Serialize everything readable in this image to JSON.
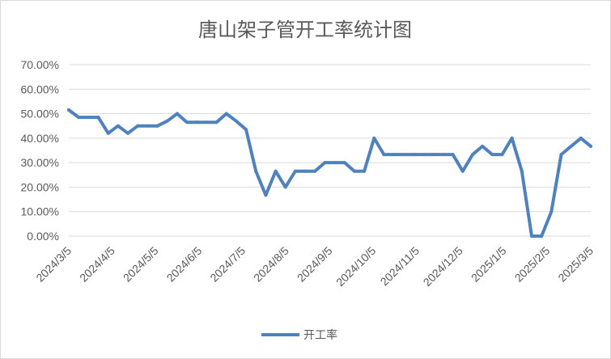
{
  "chart_data": {
    "type": "line",
    "title": "唐山架子管开工率统计图",
    "xlabel": "",
    "ylabel": "",
    "ylim": [
      0,
      70
    ],
    "y_ticks": [
      "0.00%",
      "10.00%",
      "20.00%",
      "30.00%",
      "40.00%",
      "50.00%",
      "60.00%",
      "70.00%"
    ],
    "y_tick_values": [
      0,
      10,
      20,
      30,
      40,
      50,
      60,
      70
    ],
    "x_tick_labels": [
      "2024/3/5",
      "2024/4/5",
      "2024/5/5",
      "2024/6/5",
      "2024/7/5",
      "2024/8/5",
      "2024/9/5",
      "2024/10/5",
      "2024/11/5",
      "2024/12/5",
      "2025/1/5",
      "2025/2/5",
      "2025/3/5"
    ],
    "grid": true,
    "legend_position": "bottom",
    "series": [
      {
        "name": "开工率",
        "color": "#4F81BD",
        "values": [
          51.5,
          48.5,
          48.5,
          48.5,
          42.0,
          45.0,
          42.0,
          45.0,
          45.0,
          45.0,
          47.0,
          50.0,
          46.5,
          46.5,
          46.5,
          46.5,
          50.0,
          47.0,
          43.5,
          26.5,
          16.7,
          26.5,
          20.0,
          26.5,
          26.5,
          26.5,
          30.0,
          30.0,
          30.0,
          26.5,
          26.5,
          40.0,
          33.3,
          33.3,
          33.3,
          33.3,
          33.3,
          33.3,
          33.3,
          33.3,
          26.5,
          33.3,
          36.7,
          33.3,
          33.3,
          40.0,
          26.5,
          0.0,
          0.0,
          10.0,
          33.3,
          36.7,
          40.0,
          36.7
        ]
      }
    ]
  }
}
